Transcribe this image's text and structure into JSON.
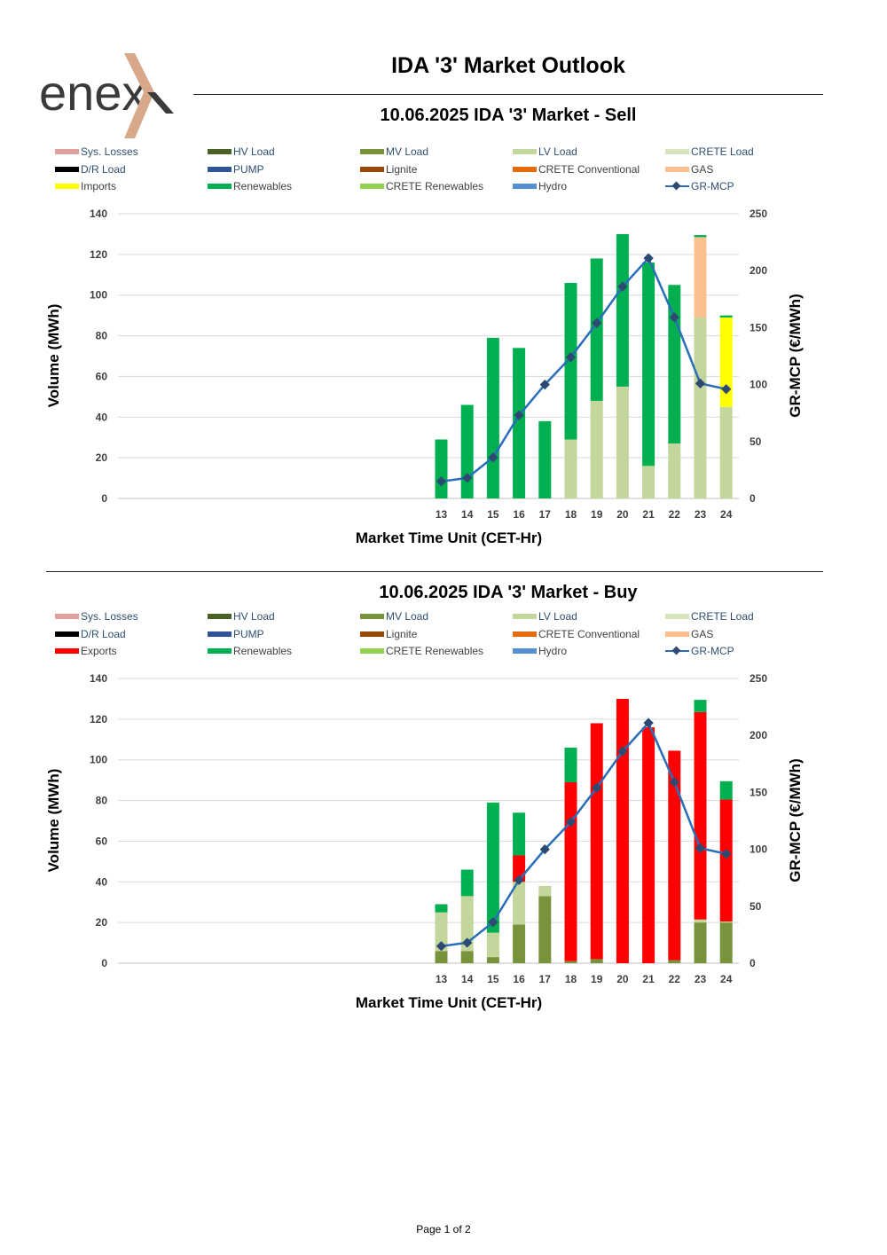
{
  "page": {
    "title": "IDA '3' Market Outlook",
    "logo_text": "enex",
    "footer": "Page 1 of 2",
    "colors": {
      "sys_losses": "#e0a0a0",
      "hv_load": "#4a6125",
      "mv_load": "#77933c",
      "lv_load": "#c3d69b",
      "crete_load": "#d8e4bc",
      "dr_load": "#000000",
      "pump": "#2f5597",
      "lignite": "#974706",
      "crete_conventional": "#e46c0a",
      "gas": "#fac090",
      "imports": "#ffff00",
      "exports": "#ff0000",
      "renewables": "#00b050",
      "crete_renewables": "#92d050",
      "hydro": "#558ed5",
      "mcp_line": "#2a6eb8",
      "mcp_marker": "#2e4a72",
      "logo_accent": "#d7a98a"
    }
  },
  "chart_data": [
    {
      "type": "bar",
      "id": "sell",
      "title": "10.06.2025  IDA '3' Market - Sell",
      "xlabel": "Market Time Unit (CET-Hr)",
      "ylabel": "Volume (MWh)",
      "y2label": "GR-MCP (€/MWh)",
      "ylim": [
        0,
        140
      ],
      "yticks": [
        "0",
        "20",
        "40",
        "60",
        "80",
        "100",
        "120",
        "140"
      ],
      "y2lim": [
        0,
        250
      ],
      "y2ticks": [
        "0",
        "50",
        "100",
        "150",
        "200",
        "250"
      ],
      "grid": true,
      "legend_position": "top",
      "legend": [
        {
          "label": "Sys. Losses",
          "color_key": "sys_losses"
        },
        {
          "label": "HV Load",
          "color_key": "hv_load"
        },
        {
          "label": "MV Load",
          "color_key": "mv_load"
        },
        {
          "label": "LV Load",
          "color_key": "lv_load"
        },
        {
          "label": "CRETE Load",
          "color_key": "crete_load"
        },
        {
          "label": "D/R Load",
          "color_key": "dr_load"
        },
        {
          "label": "PUMP",
          "color_key": "pump"
        },
        {
          "label": "Lignite",
          "color_key": "lignite"
        },
        {
          "label": "CRETE Conventional",
          "color_key": "crete_conventional"
        },
        {
          "label": "GAS",
          "color_key": "gas"
        },
        {
          "label": "Imports",
          "color_key": "imports"
        },
        {
          "label": "Renewables",
          "color_key": "renewables"
        },
        {
          "label": "CRETE Renewables",
          "color_key": "crete_renewables"
        },
        {
          "label": "Hydro",
          "color_key": "hydro"
        },
        {
          "label": "GR-MCP",
          "color_key": "mcp_line",
          "marker": true
        }
      ],
      "categories": [
        "13",
        "14",
        "15",
        "16",
        "17",
        "18",
        "19",
        "20",
        "21",
        "22",
        "23",
        "24"
      ],
      "series": [
        {
          "name": "LV Load",
          "color_key": "lv_load",
          "values": [
            0,
            0,
            0,
            0,
            0,
            29,
            48,
            55,
            16,
            27,
            89,
            45
          ]
        },
        {
          "name": "Imports",
          "color_key": "imports",
          "values": [
            0,
            0,
            0,
            0,
            0,
            0,
            0,
            0,
            0,
            0,
            0,
            44
          ]
        },
        {
          "name": "GAS",
          "color_key": "gas",
          "values": [
            0,
            0,
            0,
            0,
            0,
            0,
            0,
            0,
            0,
            0,
            39.5,
            0
          ]
        },
        {
          "name": "Renewables",
          "color_key": "renewables",
          "values": [
            29,
            46,
            79,
            74,
            38,
            77,
            70,
            75,
            100,
            78,
            1,
            1
          ]
        }
      ],
      "line": {
        "name": "GR-MCP",
        "values": [
          15,
          18,
          36,
          73,
          100,
          124,
          154,
          186,
          211,
          159,
          101,
          96
        ]
      }
    },
    {
      "type": "bar",
      "id": "buy",
      "title": "10.06.2025  IDA '3' Market - Buy",
      "xlabel": "Market Time Unit (CET-Hr)",
      "ylabel": "Volume (MWh)",
      "y2label": "GR-MCP (€/MWh)",
      "ylim": [
        0,
        140
      ],
      "yticks": [
        "0",
        "20",
        "40",
        "60",
        "80",
        "100",
        "120",
        "140"
      ],
      "y2lim": [
        0,
        250
      ],
      "y2ticks": [
        "0",
        "50",
        "100",
        "150",
        "200",
        "250"
      ],
      "grid": true,
      "legend_position": "top",
      "legend": [
        {
          "label": "Sys. Losses",
          "color_key": "sys_losses"
        },
        {
          "label": "HV Load",
          "color_key": "hv_load"
        },
        {
          "label": "MV Load",
          "color_key": "mv_load"
        },
        {
          "label": "LV Load",
          "color_key": "lv_load"
        },
        {
          "label": "CRETE Load",
          "color_key": "crete_load"
        },
        {
          "label": "D/R Load",
          "color_key": "dr_load"
        },
        {
          "label": "PUMP",
          "color_key": "pump"
        },
        {
          "label": "Lignite",
          "color_key": "lignite"
        },
        {
          "label": "CRETE Conventional",
          "color_key": "crete_conventional"
        },
        {
          "label": "GAS",
          "color_key": "gas"
        },
        {
          "label": "Exports",
          "color_key": "exports"
        },
        {
          "label": "Renewables",
          "color_key": "renewables"
        },
        {
          "label": "CRETE Renewables",
          "color_key": "crete_renewables"
        },
        {
          "label": "Hydro",
          "color_key": "hydro"
        },
        {
          "label": "GR-MCP",
          "color_key": "mcp_line",
          "marker": true
        }
      ],
      "categories": [
        "13",
        "14",
        "15",
        "16",
        "17",
        "18",
        "19",
        "20",
        "21",
        "22",
        "23",
        "24"
      ],
      "series": [
        {
          "name": "MV Load",
          "color_key": "mv_load",
          "values": [
            6,
            6,
            3,
            19,
            33,
            1,
            2,
            0,
            0,
            1.5,
            20,
            20
          ]
        },
        {
          "name": "LV Load",
          "color_key": "lv_load",
          "values": [
            19,
            27,
            12,
            21,
            5,
            0,
            0,
            0,
            0,
            0,
            1.5,
            0.5
          ]
        },
        {
          "name": "Exports",
          "color_key": "exports",
          "values": [
            0,
            0,
            0,
            13,
            0,
            88,
            116,
            130,
            116,
            103,
            102,
            60
          ]
        },
        {
          "name": "Renewables",
          "color_key": "renewables",
          "values": [
            4,
            13,
            64,
            21,
            0,
            17,
            0,
            0,
            0,
            0,
            6,
            9
          ]
        }
      ],
      "line": {
        "name": "GR-MCP",
        "values": [
          15,
          18,
          36,
          73,
          100,
          124,
          154,
          186,
          211,
          159,
          101,
          96
        ]
      }
    }
  ]
}
